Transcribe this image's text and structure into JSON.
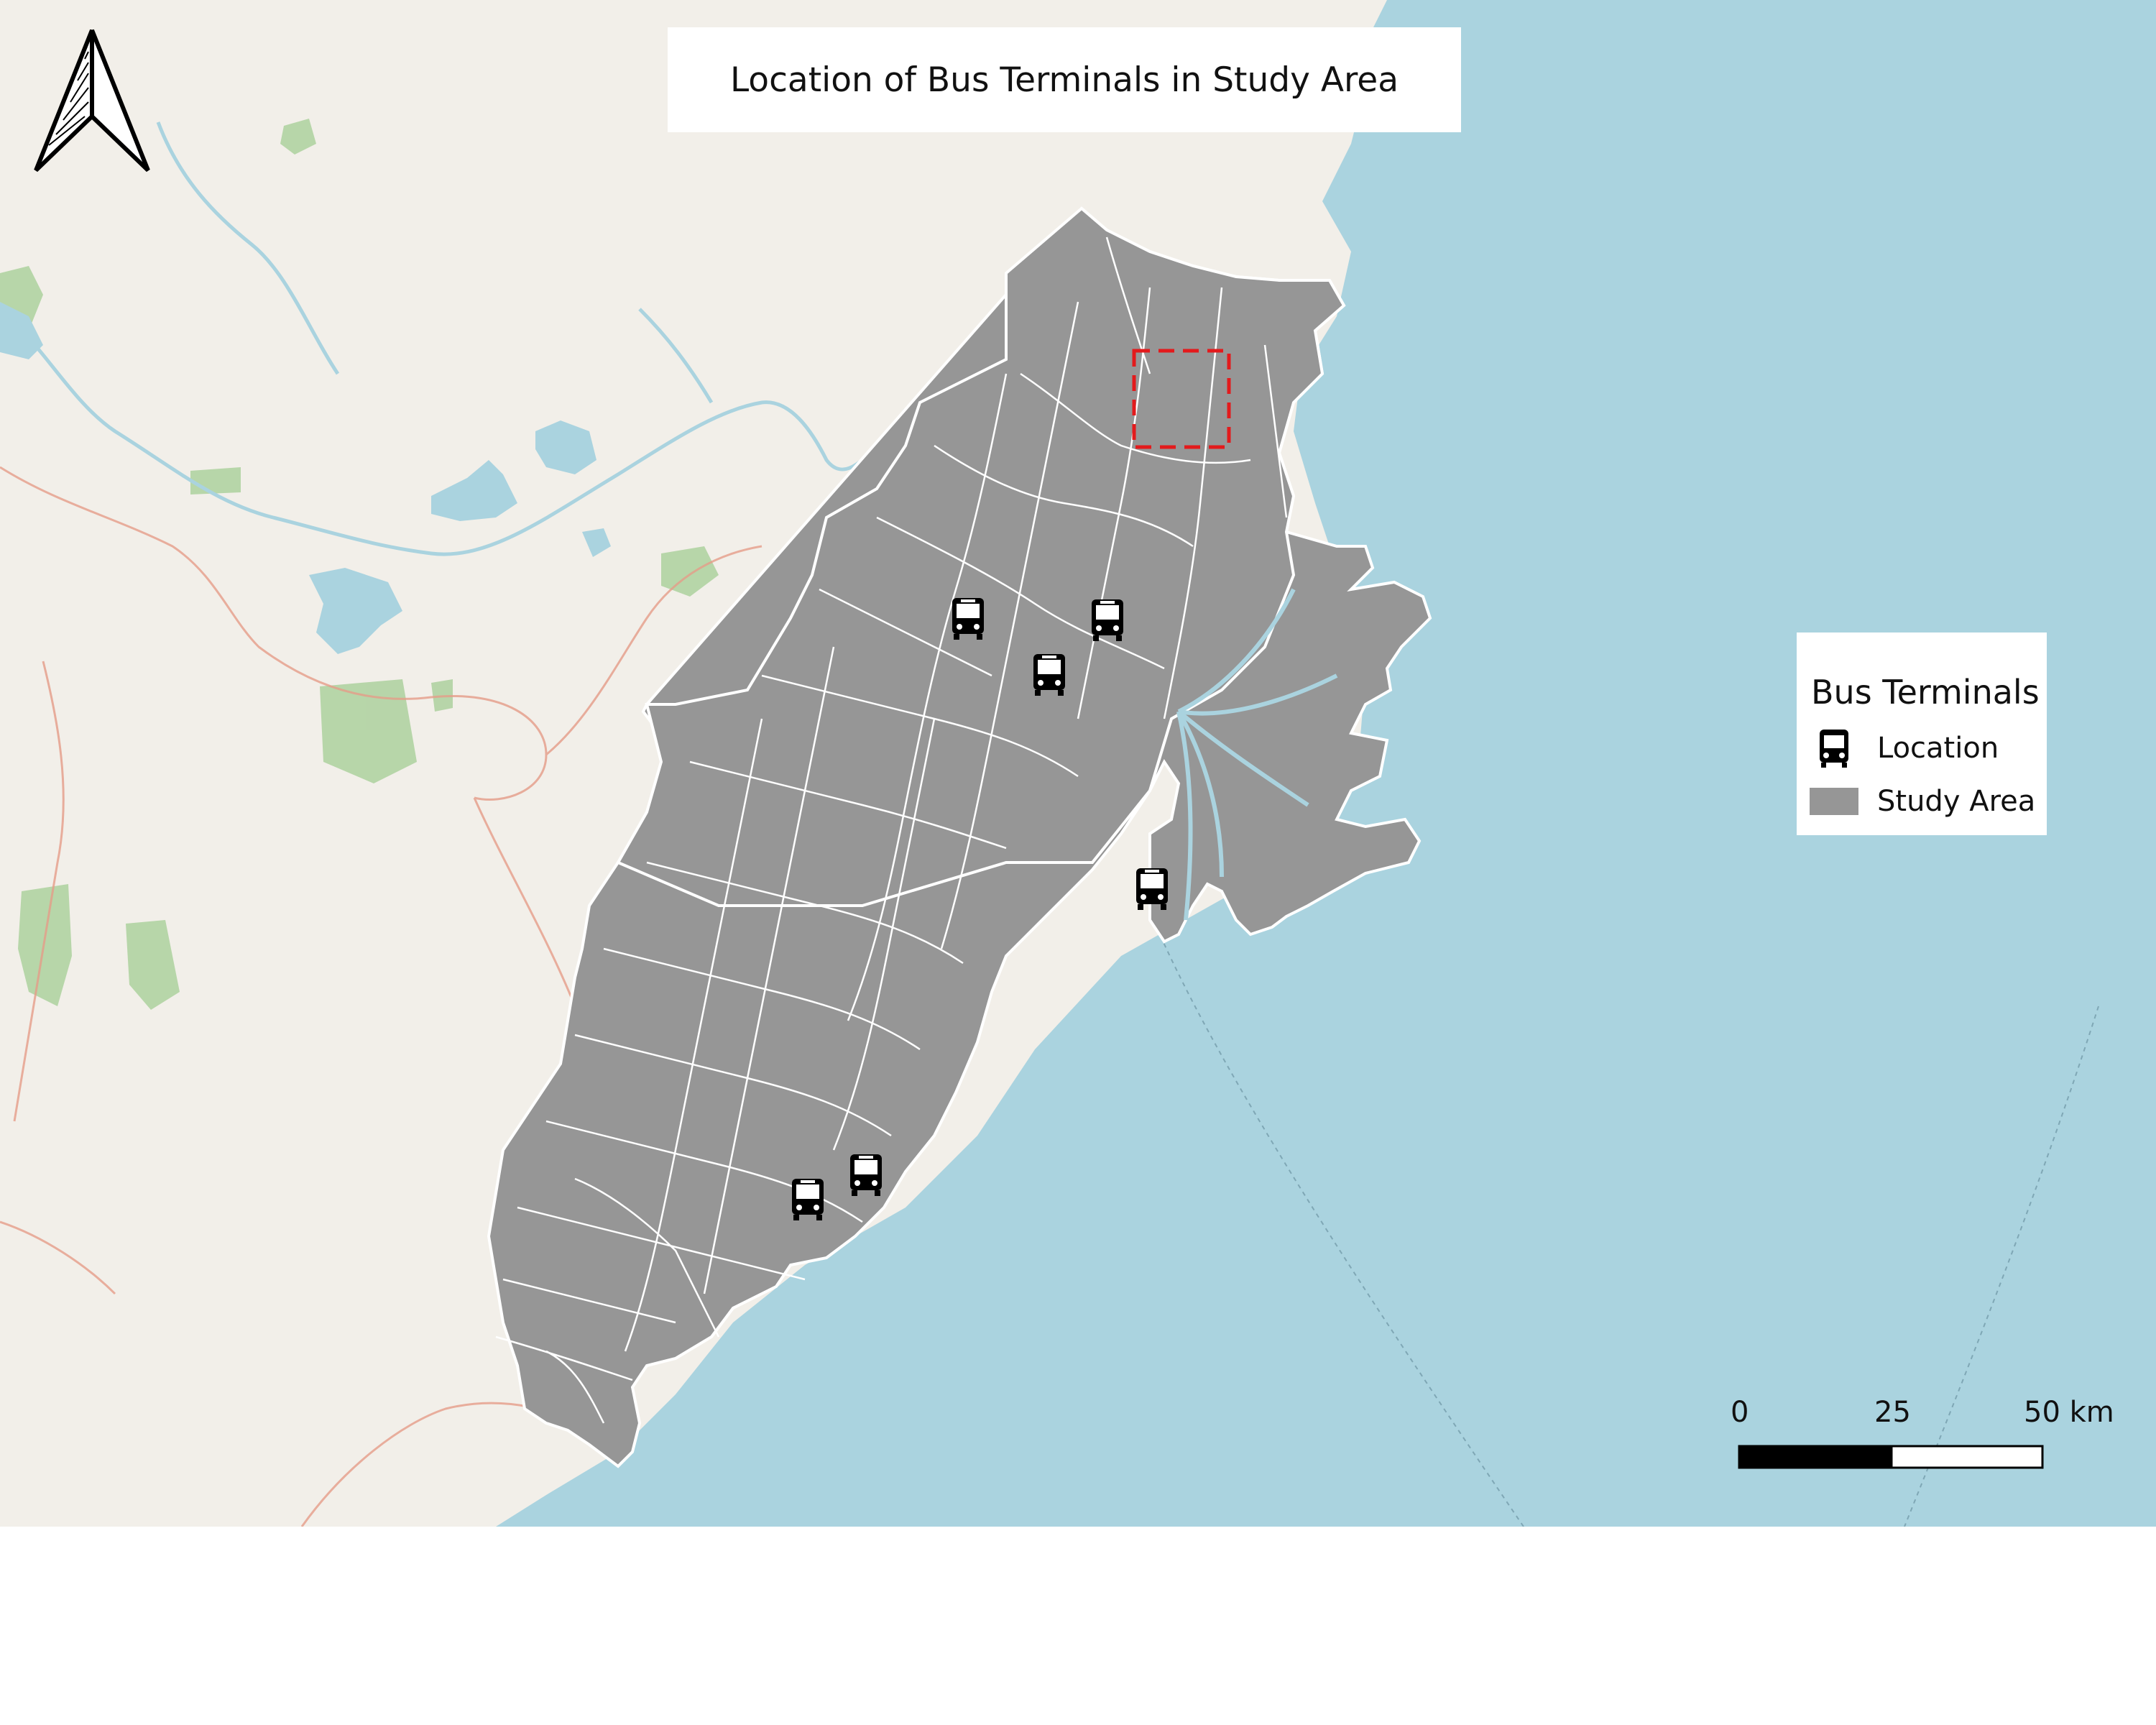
{
  "title": "Location of Bus Terminals in Study Area",
  "legend": {
    "title": "Bus Terminals",
    "items": [
      {
        "label": "Location",
        "icon": "bus-icon"
      },
      {
        "label": "Study Area",
        "color": "#969696"
      }
    ]
  },
  "scale_bar": {
    "labels": [
      "0",
      "25",
      "50 km"
    ]
  },
  "colors": {
    "sea": "#aad3df",
    "land": "#f2efe9",
    "study_area": "#969696",
    "boundaries": "#ffffff",
    "highlight_box": "#e31a1c",
    "lakes": "#aad3df",
    "parks": "#add19e"
  },
  "icons": {
    "north_arrow": "north-arrow-icon",
    "terminal": "bus-icon"
  }
}
